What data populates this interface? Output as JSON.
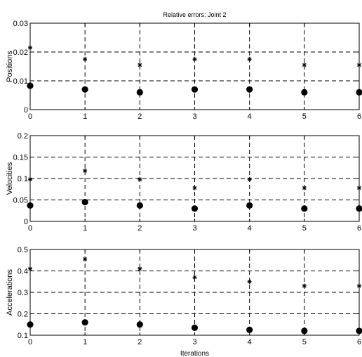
{
  "chart_data": [
    {
      "type": "scatter",
      "title": "Relative errors: Joint 2",
      "xlabel": "",
      "ylabel": "Positions",
      "xlim": [
        0,
        6
      ],
      "ylim": [
        0,
        0.03
      ],
      "xticks": [
        "0",
        "1",
        "2",
        "3",
        "4",
        "5",
        "6"
      ],
      "yticks": [
        "0",
        "0.01",
        "0.02",
        "0.03"
      ],
      "grid": true,
      "series": [
        {
          "marker": "star",
          "x": [
            0,
            1,
            2,
            3,
            4,
            5,
            6
          ],
          "values": [
            0.0215,
            0.0175,
            0.0155,
            0.0175,
            0.0175,
            0.0155,
            0.0155
          ]
        },
        {
          "marker": "dot",
          "x": [
            0,
            1,
            2,
            3,
            4,
            5,
            6
          ],
          "values": [
            0.0083,
            0.007,
            0.006,
            0.007,
            0.007,
            0.006,
            0.006
          ]
        }
      ]
    },
    {
      "type": "scatter",
      "title": "",
      "xlabel": "",
      "ylabel": "Velocities",
      "xlim": [
        0,
        6
      ],
      "ylim": [
        0,
        0.2
      ],
      "xticks": [
        "0",
        "1",
        "2",
        "3",
        "4",
        "5",
        "6"
      ],
      "yticks": [
        "0",
        "0.05",
        "0.1",
        "0.15",
        "0.2"
      ],
      "grid": true,
      "series": [
        {
          "marker": "star",
          "x": [
            0,
            1,
            2,
            3,
            4,
            5,
            6
          ],
          "values": [
            0.098,
            0.118,
            0.098,
            0.078,
            0.098,
            0.078,
            0.078
          ]
        },
        {
          "marker": "dot",
          "x": [
            0,
            1,
            2,
            3,
            4,
            5,
            6
          ],
          "values": [
            0.037,
            0.045,
            0.037,
            0.03,
            0.037,
            0.03,
            0.03
          ]
        }
      ]
    },
    {
      "type": "scatter",
      "title": "",
      "xlabel": "Iterations",
      "ylabel": "Accelerations",
      "xlim": [
        0,
        6
      ],
      "ylim": [
        0.1,
        0.5
      ],
      "xticks": [
        "0",
        "1",
        "2",
        "3",
        "4",
        "5",
        "6"
      ],
      "yticks": [
        "0.1",
        "0.2",
        "0.3",
        "0.4",
        "0.5"
      ],
      "grid": true,
      "series": [
        {
          "marker": "star",
          "x": [
            0,
            1,
            2,
            3,
            4,
            5,
            6
          ],
          "values": [
            0.41,
            0.455,
            0.41,
            0.37,
            0.35,
            0.33,
            0.33
          ]
        },
        {
          "marker": "dot",
          "x": [
            0,
            1,
            2,
            3,
            4,
            5,
            6
          ],
          "values": [
            0.15,
            0.16,
            0.15,
            0.135,
            0.125,
            0.12,
            0.12
          ]
        }
      ]
    }
  ]
}
